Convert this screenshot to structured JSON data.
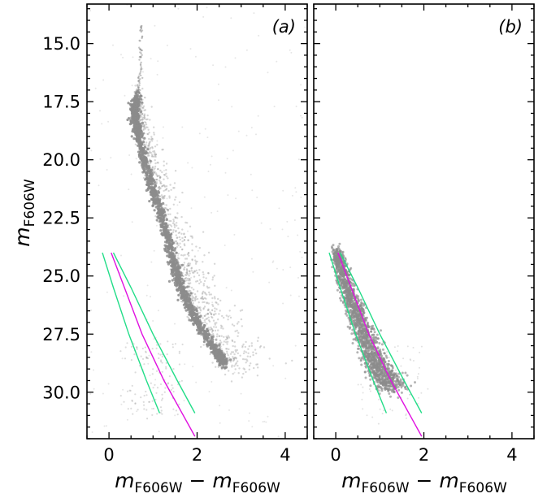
{
  "chart_data": {
    "type": "scatter",
    "y_axis": {
      "label_main": "m",
      "label_sub": "F606W",
      "lim": [
        13.3,
        32.0
      ],
      "inverted": true,
      "ticks": [
        15.0,
        17.5,
        20.0,
        22.5,
        25.0,
        27.5,
        30.0
      ],
      "tick_labels": [
        "15.0",
        "17.5",
        "20.0",
        "22.5",
        "25.0",
        "27.5",
        "30.0"
      ]
    },
    "x_axis": {
      "xlim": [
        -0.5,
        4.5
      ],
      "ticks": [
        0,
        2,
        4
      ],
      "tick_labels": [
        "0",
        "2",
        "4"
      ],
      "label_m1": "m",
      "label_sub1": "F606W",
      "label_minus": " − ",
      "label_m2": "m",
      "label_sub2": "F606W"
    },
    "colors": {
      "points": "#8c8c8c",
      "ridge_line": "#e010e0",
      "envelope_lines": "#22dd88"
    },
    "panels": [
      {
        "label": "(a)",
        "sequence": [
          [
            0.62,
            17.3
          ],
          [
            0.58,
            17.8
          ],
          [
            0.6,
            18.3
          ],
          [
            0.68,
            19.0
          ],
          [
            0.8,
            20.0
          ],
          [
            0.98,
            21.2
          ],
          [
            1.18,
            22.4
          ],
          [
            1.35,
            23.5
          ],
          [
            1.48,
            24.5
          ],
          [
            1.6,
            25.3
          ],
          [
            1.75,
            26.0
          ],
          [
            1.95,
            26.8
          ],
          [
            2.2,
            27.6
          ],
          [
            2.45,
            28.3
          ],
          [
            2.65,
            28.8
          ]
        ],
        "upper_branch": [
          [
            0.72,
            14.2
          ],
          [
            0.73,
            15.0
          ],
          [
            0.72,
            15.8
          ],
          [
            0.7,
            16.5
          ],
          [
            0.66,
            17.0
          ],
          [
            0.62,
            17.3
          ]
        ],
        "ridge_line": [
          [
            0.05,
            24.0
          ],
          [
            0.35,
            25.5
          ],
          [
            0.75,
            27.5
          ],
          [
            1.25,
            29.5
          ],
          [
            1.95,
            31.9
          ]
        ],
        "envelope_lines": [
          [
            [
              -0.15,
              24.0
            ],
            [
              0.1,
              25.5
            ],
            [
              0.45,
              27.5
            ],
            [
              0.85,
              29.5
            ],
            [
              1.15,
              30.9
            ]
          ],
          [
            [
              0.1,
              24.0
            ],
            [
              0.5,
              25.5
            ],
            [
              1.0,
              27.5
            ],
            [
              1.55,
              29.5
            ],
            [
              1.95,
              30.9
            ]
          ]
        ]
      },
      {
        "label": "(b)",
        "sequence": [
          [
            0.0,
            24.0
          ],
          [
            0.1,
            24.5
          ],
          [
            0.25,
            25.5
          ],
          [
            0.45,
            26.5
          ],
          [
            0.65,
            27.5
          ],
          [
            0.85,
            28.5
          ],
          [
            1.05,
            29.2
          ],
          [
            1.3,
            29.8
          ]
        ],
        "ridge_line": [
          [
            0.05,
            24.0
          ],
          [
            0.35,
            25.5
          ],
          [
            0.75,
            27.5
          ],
          [
            1.25,
            29.5
          ],
          [
            1.95,
            31.9
          ]
        ],
        "envelope_lines": [
          [
            [
              -0.15,
              24.0
            ],
            [
              0.1,
              25.5
            ],
            [
              0.45,
              27.5
            ],
            [
              0.85,
              29.5
            ],
            [
              1.15,
              30.9
            ]
          ],
          [
            [
              0.1,
              24.0
            ],
            [
              0.5,
              25.5
            ],
            [
              1.0,
              27.5
            ],
            [
              1.55,
              29.5
            ],
            [
              1.95,
              30.9
            ]
          ]
        ]
      }
    ],
    "grid": false,
    "legend": false
  }
}
